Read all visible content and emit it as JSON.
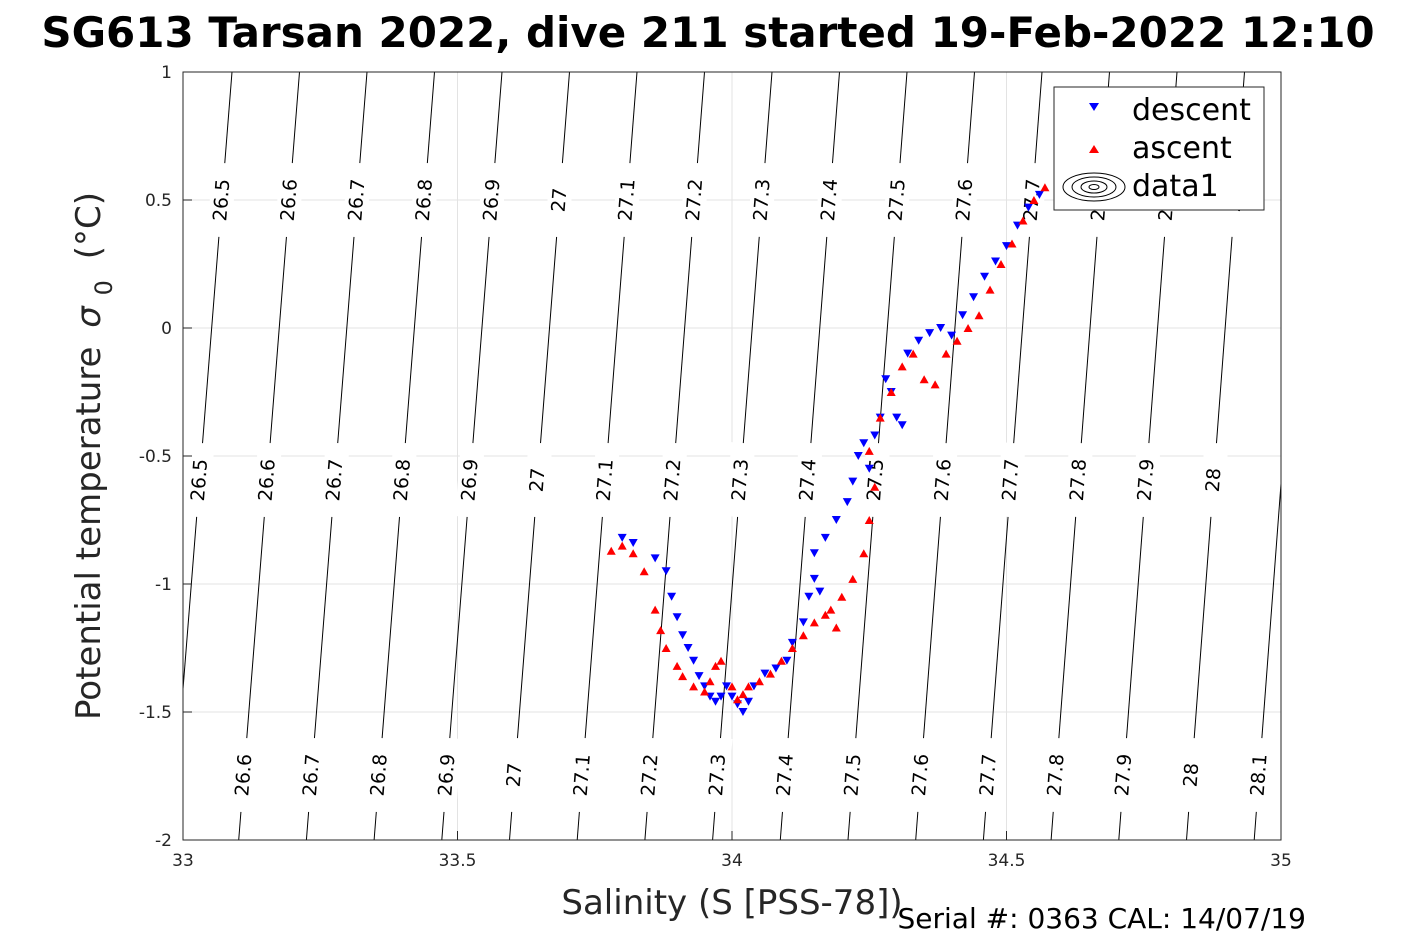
{
  "chart_data": {
    "type": "scatter",
    "title": "SG613 Tarsan 2022, dive 211 started 19-Feb-2022 12:10",
    "xlabel": "Salinity (S [PSS-78])",
    "ylabel": "Potential temperature",
    "ylabel_symbol": "σ",
    "ylabel_subscript": "0",
    "ylabel_unit": "(°C)",
    "xlim": [
      33,
      35
    ],
    "ylim": [
      -2,
      1
    ],
    "xticks": [
      "33",
      "33.5",
      "34",
      "34.5",
      "35"
    ],
    "yticks": [
      "-2",
      "-1.5",
      "-1",
      "-0.5",
      "0",
      "0.5",
      "1"
    ],
    "grid": true,
    "legend_position": "top-right",
    "legend": [
      "descent",
      "ascent",
      "data1"
    ],
    "density_contours": [
      "26.5",
      "26.6",
      "26.7",
      "26.8",
      "26.9",
      "27",
      "27.1",
      "27.2",
      "27.3",
      "27.4",
      "27.5",
      "27.6",
      "27.7",
      "27.8",
      "27.9",
      "28",
      "28.1"
    ],
    "series": [
      {
        "name": "descent",
        "marker": "triangle-down",
        "color": "#0000ff",
        "points": [
          [
            33.8,
            -0.82
          ],
          [
            33.82,
            -0.84
          ],
          [
            33.86,
            -0.9
          ],
          [
            33.88,
            -0.95
          ],
          [
            33.89,
            -1.05
          ],
          [
            33.9,
            -1.13
          ],
          [
            33.91,
            -1.2
          ],
          [
            33.92,
            -1.25
          ],
          [
            33.93,
            -1.3
          ],
          [
            33.94,
            -1.36
          ],
          [
            33.95,
            -1.4
          ],
          [
            33.96,
            -1.44
          ],
          [
            33.97,
            -1.46
          ],
          [
            33.98,
            -1.44
          ],
          [
            33.99,
            -1.4
          ],
          [
            34.0,
            -1.44
          ],
          [
            34.01,
            -1.47
          ],
          [
            34.02,
            -1.5
          ],
          [
            34.03,
            -1.46
          ],
          [
            34.04,
            -1.4
          ],
          [
            34.06,
            -1.35
          ],
          [
            34.08,
            -1.33
          ],
          [
            34.1,
            -1.3
          ],
          [
            34.11,
            -1.23
          ],
          [
            34.13,
            -1.15
          ],
          [
            34.14,
            -1.05
          ],
          [
            34.15,
            -0.98
          ],
          [
            34.16,
            -1.03
          ],
          [
            34.15,
            -0.88
          ],
          [
            34.17,
            -0.82
          ],
          [
            34.19,
            -0.75
          ],
          [
            34.21,
            -0.68
          ],
          [
            34.22,
            -0.6
          ],
          [
            34.23,
            -0.5
          ],
          [
            34.24,
            -0.45
          ],
          [
            34.25,
            -0.55
          ],
          [
            34.26,
            -0.42
          ],
          [
            34.27,
            -0.35
          ],
          [
            34.28,
            -0.2
          ],
          [
            34.29,
            -0.25
          ],
          [
            34.3,
            -0.35
          ],
          [
            34.31,
            -0.38
          ],
          [
            34.32,
            -0.1
          ],
          [
            34.34,
            -0.05
          ],
          [
            34.36,
            -0.02
          ],
          [
            34.38,
            0.0
          ],
          [
            34.4,
            -0.03
          ],
          [
            34.42,
            0.05
          ],
          [
            34.44,
            0.12
          ],
          [
            34.46,
            0.2
          ],
          [
            34.48,
            0.26
          ],
          [
            34.5,
            0.32
          ],
          [
            34.52,
            0.4
          ],
          [
            34.54,
            0.47
          ],
          [
            34.56,
            0.52
          ]
        ]
      },
      {
        "name": "ascent",
        "marker": "triangle-up",
        "color": "#ff0000",
        "points": [
          [
            33.78,
            -0.87
          ],
          [
            33.8,
            -0.85
          ],
          [
            33.82,
            -0.88
          ],
          [
            33.84,
            -0.95
          ],
          [
            33.86,
            -1.1
          ],
          [
            33.87,
            -1.18
          ],
          [
            33.88,
            -1.25
          ],
          [
            33.9,
            -1.32
          ],
          [
            33.91,
            -1.36
          ],
          [
            33.93,
            -1.4
          ],
          [
            33.95,
            -1.42
          ],
          [
            33.96,
            -1.38
          ],
          [
            33.97,
            -1.32
          ],
          [
            33.98,
            -1.3
          ],
          [
            34.0,
            -1.4
          ],
          [
            34.01,
            -1.45
          ],
          [
            34.02,
            -1.43
          ],
          [
            34.03,
            -1.4
          ],
          [
            34.05,
            -1.38
          ],
          [
            34.07,
            -1.35
          ],
          [
            34.09,
            -1.3
          ],
          [
            34.11,
            -1.25
          ],
          [
            34.13,
            -1.2
          ],
          [
            34.15,
            -1.15
          ],
          [
            34.17,
            -1.12
          ],
          [
            34.19,
            -1.17
          ],
          [
            34.18,
            -1.1
          ],
          [
            34.2,
            -1.05
          ],
          [
            34.22,
            -0.98
          ],
          [
            34.24,
            -0.88
          ],
          [
            34.25,
            -0.75
          ],
          [
            34.26,
            -0.62
          ],
          [
            34.25,
            -0.48
          ],
          [
            34.27,
            -0.35
          ],
          [
            34.29,
            -0.25
          ],
          [
            34.31,
            -0.15
          ],
          [
            34.33,
            -0.1
          ],
          [
            34.35,
            -0.2
          ],
          [
            34.37,
            -0.22
          ],
          [
            34.39,
            -0.1
          ],
          [
            34.41,
            -0.05
          ],
          [
            34.43,
            0.0
          ],
          [
            34.45,
            0.05
          ],
          [
            34.47,
            0.15
          ],
          [
            34.49,
            0.25
          ],
          [
            34.51,
            0.33
          ],
          [
            34.53,
            0.42
          ],
          [
            34.55,
            0.5
          ],
          [
            34.57,
            0.55
          ]
        ]
      }
    ]
  },
  "footer": {
    "serial": "Serial #: 0363  CAL: 14/07/19"
  }
}
